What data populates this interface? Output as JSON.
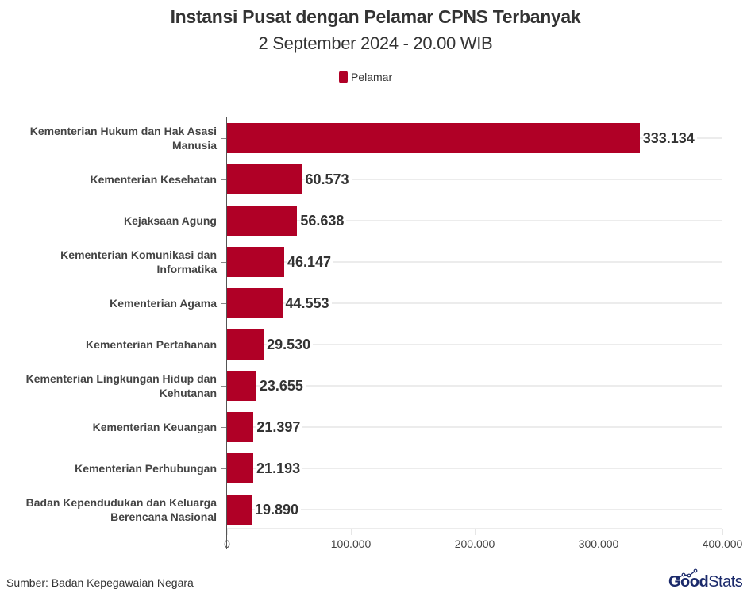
{
  "header": {
    "title": "Instansi Pusat dengan Pelamar CPNS Terbanyak",
    "subtitle": "2 September 2024 - 20.00 WIB"
  },
  "legend": {
    "items": [
      {
        "label": "Pelamar",
        "color": "#b00026"
      }
    ]
  },
  "footer": {
    "source": "Sumber: Badan Kepegawaian Negara",
    "logo_part1": "Good",
    "logo_part2": "Stats"
  },
  "colors": {
    "bar": "#b00026",
    "text": "#333333",
    "grid": "#ececec"
  },
  "chart_data": {
    "type": "bar",
    "orientation": "horizontal",
    "title": "Instansi Pusat dengan Pelamar CPNS Terbanyak",
    "subtitle": "2 September 2024 - 20.00 WIB",
    "xlabel": "",
    "ylabel": "",
    "xlim": [
      0,
      400000
    ],
    "x_ticks": [
      "0",
      "100.000",
      "200.000",
      "300.000",
      "400.000"
    ],
    "legend_position": "top-center",
    "grid": "horizontal",
    "categories": [
      "Kementerian Hukum dan Hak Asasi Manusia",
      "Kementerian Kesehatan",
      "Kejaksaan Agung",
      "Kementerian Komunikasi dan Informatika",
      "Kementerian Agama",
      "Kementerian Pertahanan",
      "Kementerian Lingkungan Hidup dan Kehutanan",
      "Kementerian Keuangan",
      "Kementerian Perhubungan",
      "Badan Kependudukan dan Keluarga Berencana Nasional"
    ],
    "series": [
      {
        "name": "Pelamar",
        "color": "#b00026",
        "values": [
          333134,
          60573,
          56638,
          46147,
          44553,
          29530,
          23655,
          21397,
          21193,
          19890
        ],
        "value_labels": [
          "333.134",
          "60.573",
          "56.638",
          "46.147",
          "44.553",
          "29.530",
          "23.655",
          "21.397",
          "21.193",
          "19.890"
        ]
      }
    ],
    "label_lines": [
      [
        "Kementerian Hukum dan Hak Asasi",
        "Manusia"
      ],
      [
        "Kementerian Kesehatan"
      ],
      [
        "Kejaksaan Agung"
      ],
      [
        "Kementerian Komunikasi dan",
        "Informatika"
      ],
      [
        "Kementerian Agama"
      ],
      [
        "Kementerian Pertahanan"
      ],
      [
        "Kementerian Lingkungan Hidup dan",
        "Kehutanan"
      ],
      [
        "Kementerian Keuangan"
      ],
      [
        "Kementerian Perhubungan"
      ],
      [
        "Badan Kependudukan dan Keluarga",
        "Berencana Nasional"
      ]
    ],
    "source": "Sumber: Badan Kepegawaian Negara"
  }
}
